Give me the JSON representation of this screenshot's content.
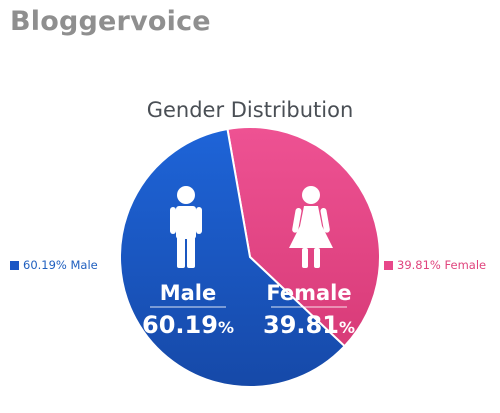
{
  "brand": {
    "name": "Bloggervoice"
  },
  "chart_data": {
    "type": "pie",
    "title": "Gender Distribution",
    "categories": [
      "Male",
      "Female"
    ],
    "values": [
      60.19,
      39.81
    ],
    "slices": [
      {
        "label": "Male",
        "value": 60.19,
        "percent_text": "60.19",
        "unit": "%",
        "legend": "60.19% Male",
        "color": "#1a56c4",
        "icon": "male-figure-icon"
      },
      {
        "label": "Female",
        "value": 39.81,
        "percent_text": "39.81",
        "unit": "%",
        "legend": "39.81% Female",
        "color": "#e8478a",
        "icon": "female-figure-icon"
      }
    ],
    "legend_placement": "left and right of pie"
  }
}
